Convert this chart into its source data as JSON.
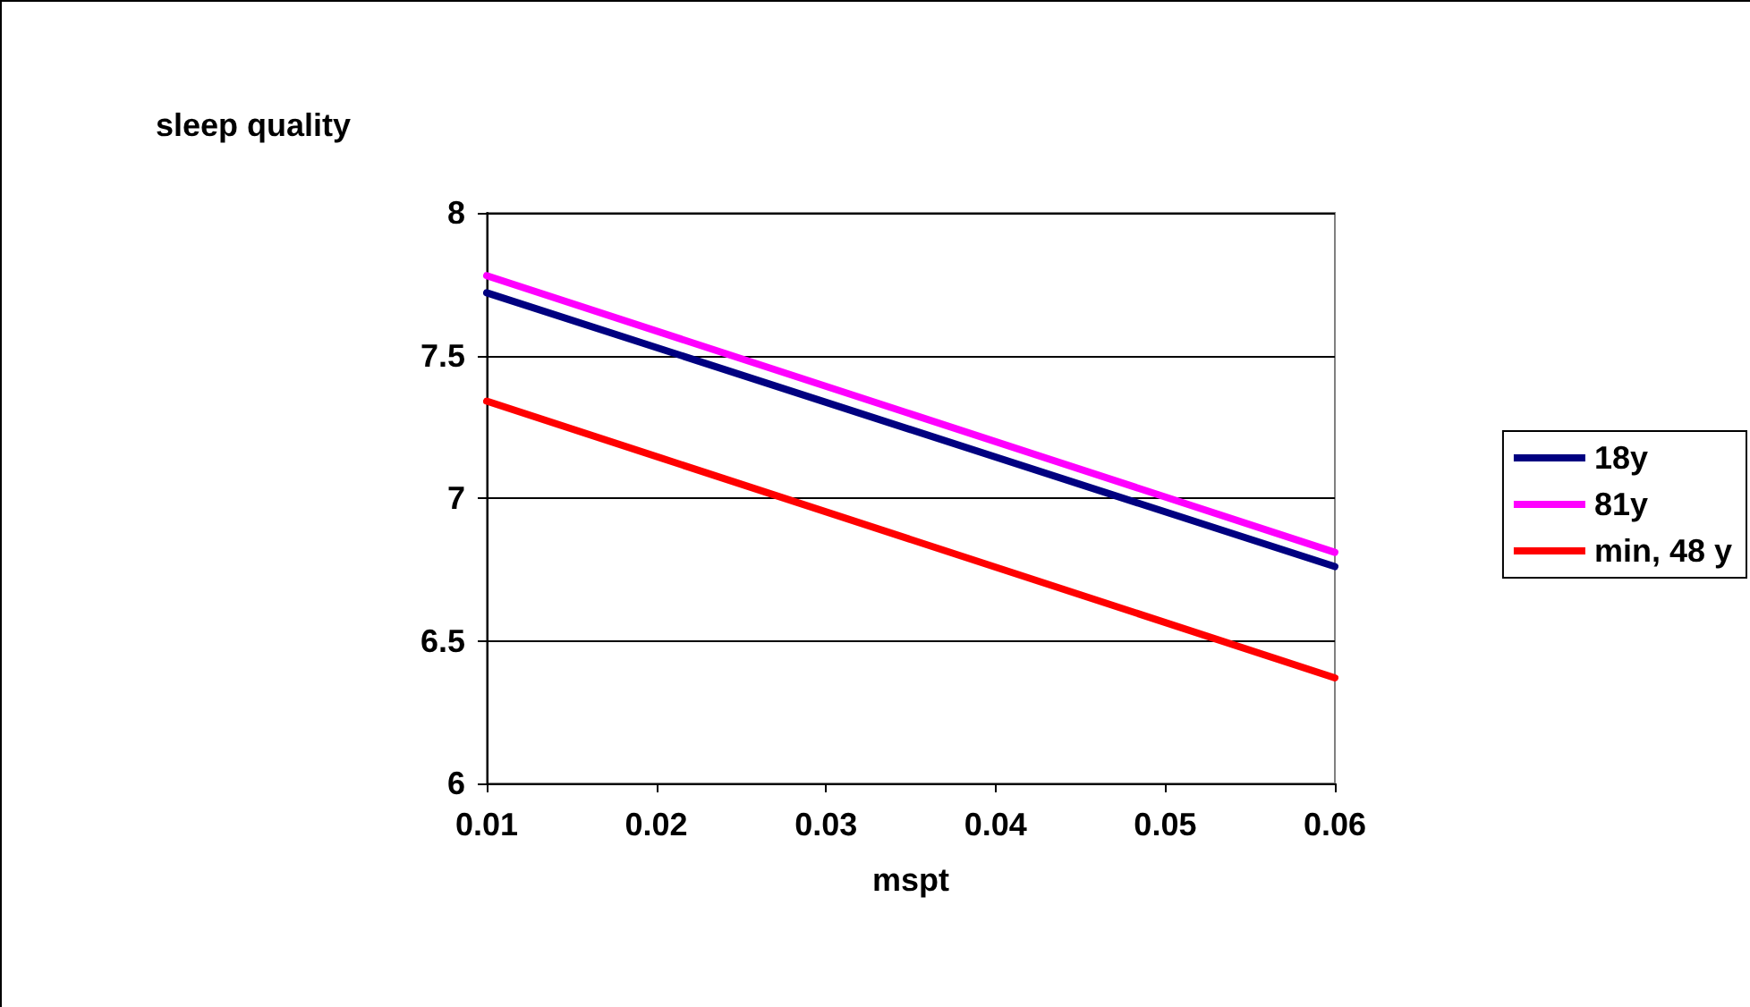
{
  "chart_data": {
    "type": "line",
    "xlabel": "mspt",
    "ylabel": "sleep quality",
    "x": [
      0.01,
      0.06
    ],
    "series": [
      {
        "name": "18y",
        "color": "#000080",
        "values": [
          7.72,
          6.76
        ]
      },
      {
        "name": "81y",
        "color": "#ff00ff",
        "values": [
          7.78,
          6.81
        ]
      },
      {
        "name": "min, 48 y",
        "color": "#ff0000",
        "values": [
          7.34,
          6.37
        ]
      }
    ],
    "xlim": [
      0.01,
      0.06
    ],
    "xticks": [
      0.01,
      0.02,
      0.03,
      0.04,
      0.05,
      0.06
    ],
    "ylim": [
      6,
      8
    ],
    "yticks": [
      6,
      6.5,
      7,
      7.5,
      8
    ],
    "grid": "y",
    "legend": "right"
  }
}
